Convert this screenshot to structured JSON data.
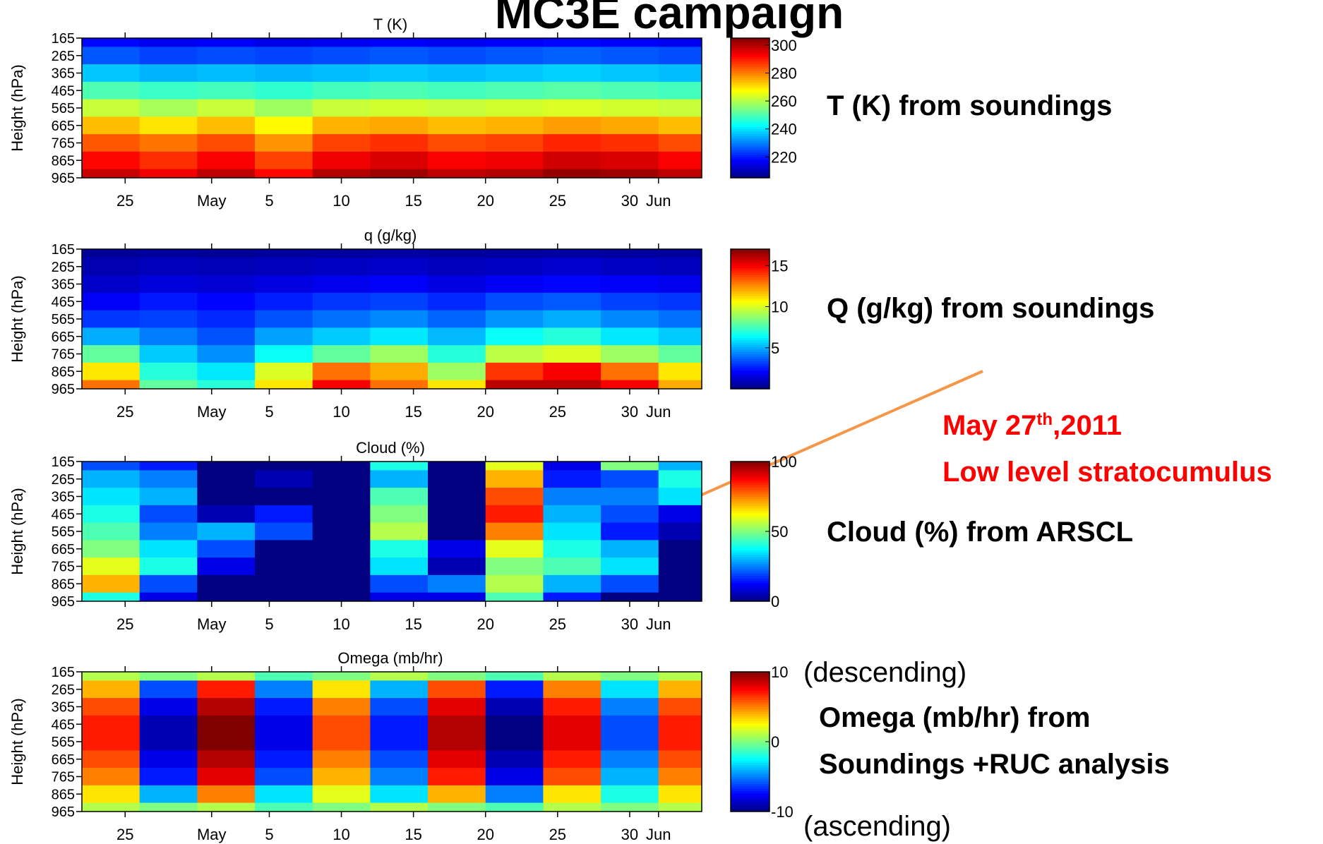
{
  "title": "MC3E campaign",
  "highlight": {
    "date": [
      "May 27",
      "th",
      ",2011"
    ],
    "text": "Low level stratocumulus"
  },
  "chart_data": [
    {
      "type": "heatmap",
      "title": "T (K)",
      "ylabel": "Height (hPa)",
      "annotation": [
        "T (K) from soundings"
      ],
      "colormap": "jet",
      "x": [
        114,
        118,
        122,
        126,
        130,
        134,
        138,
        142,
        146,
        150,
        154
      ],
      "y": [
        165,
        265,
        365,
        465,
        565,
        665,
        765,
        865,
        965
      ],
      "xlim": [
        112,
        155
      ],
      "ylim": [
        965,
        165
      ],
      "xticks": [
        {
          "value": 115,
          "label": "25"
        },
        {
          "value": 121,
          "label": "May"
        },
        {
          "value": 125,
          "label": "5"
        },
        {
          "value": 130,
          "label": "10"
        },
        {
          "value": 135,
          "label": "15"
        },
        {
          "value": 140,
          "label": "20"
        },
        {
          "value": 145,
          "label": "25"
        },
        {
          "value": 150,
          "label": "30"
        },
        {
          "value": 152,
          "label": "Jun"
        }
      ],
      "yticks": [
        165,
        265,
        365,
        465,
        565,
        665,
        765,
        865,
        965
      ],
      "clim": [
        205,
        305
      ],
      "cticks": [
        220,
        240,
        260,
        280,
        300
      ],
      "values": [
        [
          218,
          216,
          217,
          215,
          216,
          217,
          216,
          217,
          218,
          217,
          216
        ],
        [
          226,
          224,
          225,
          224,
          225,
          226,
          225,
          226,
          227,
          226,
          225
        ],
        [
          237,
          235,
          236,
          235,
          236,
          237,
          236,
          237,
          238,
          237,
          236
        ],
        [
          250,
          248,
          249,
          247,
          249,
          250,
          249,
          250,
          251,
          250,
          249
        ],
        [
          262,
          259,
          262,
          258,
          262,
          263,
          262,
          263,
          264,
          263,
          262
        ],
        [
          274,
          270,
          274,
          268,
          275,
          276,
          274,
          275,
          277,
          276,
          274
        ],
        [
          284,
          281,
          285,
          278,
          286,
          288,
          285,
          286,
          289,
          288,
          285
        ],
        [
          292,
          288,
          293,
          286,
          294,
          296,
          293,
          294,
          297,
          296,
          293
        ],
        [
          298,
          294,
          299,
          292,
          300,
          302,
          299,
          300,
          303,
          302,
          299
        ]
      ]
    },
    {
      "type": "heatmap",
      "title": "q (g/kg)",
      "ylabel": "Height (hPa)",
      "annotation": [
        "Q (g/kg) from soundings"
      ],
      "colormap": "jet",
      "x": [
        114,
        118,
        122,
        126,
        130,
        134,
        138,
        142,
        146,
        150,
        154
      ],
      "y": [
        165,
        265,
        365,
        465,
        565,
        665,
        765,
        865,
        965
      ],
      "xlim": [
        112,
        155
      ],
      "ylim": [
        965,
        165
      ],
      "xticks": [
        {
          "value": 115,
          "label": "25"
        },
        {
          "value": 121,
          "label": "May"
        },
        {
          "value": 125,
          "label": "5"
        },
        {
          "value": 130,
          "label": "10"
        },
        {
          "value": 135,
          "label": "15"
        },
        {
          "value": 140,
          "label": "20"
        },
        {
          "value": 145,
          "label": "25"
        },
        {
          "value": 150,
          "label": "30"
        },
        {
          "value": 152,
          "label": "Jun"
        }
      ],
      "yticks": [
        165,
        265,
        365,
        465,
        565,
        665,
        765,
        865,
        965
      ],
      "clim": [
        0,
        17
      ],
      "cticks": [
        5,
        10,
        15
      ],
      "values": [
        [
          0.4,
          0.5,
          0.4,
          0.5,
          0.5,
          0.6,
          0.5,
          0.5,
          0.6,
          0.5,
          0.5
        ],
        [
          0.8,
          1,
          0.9,
          1,
          1.1,
          1.2,
          1,
          1.1,
          1.3,
          1.1,
          1
        ],
        [
          1.2,
          1.5,
          1.4,
          1.6,
          1.8,
          2,
          1.6,
          1.9,
          2.2,
          2,
          1.8
        ],
        [
          2,
          2.5,
          2.2,
          2.6,
          3,
          3.2,
          2.8,
          3.4,
          3.6,
          3.2,
          3
        ],
        [
          3,
          3.2,
          2.8,
          3.5,
          4,
          4.4,
          3.8,
          4.6,
          5,
          4.4,
          4
        ],
        [
          5,
          4.2,
          3.5,
          4.8,
          5.5,
          6,
          5.2,
          6.5,
          7,
          6,
          5.5
        ],
        [
          8,
          5.5,
          4.5,
          6.5,
          8,
          9,
          7,
          9.5,
          10,
          9,
          8
        ],
        [
          11,
          7,
          6,
          10,
          13,
          12,
          9,
          14,
          15,
          13,
          11
        ],
        [
          13,
          8,
          7,
          11,
          15,
          13,
          11,
          16,
          16,
          15,
          12
        ]
      ]
    },
    {
      "type": "heatmap",
      "title": "Cloud (%)",
      "ylabel": "Height (hPa)",
      "annotation": [
        "Cloud (%) from ARSCL"
      ],
      "colormap": "jet",
      "x": [
        114,
        118,
        122,
        126,
        130,
        134,
        138,
        142,
        146,
        150,
        154
      ],
      "y": [
        165,
        265,
        365,
        465,
        565,
        665,
        765,
        865,
        965
      ],
      "xlim": [
        112,
        155
      ],
      "ylim": [
        965,
        165
      ],
      "xticks": [
        {
          "value": 115,
          "label": "25"
        },
        {
          "value": 121,
          "label": "May"
        },
        {
          "value": 125,
          "label": "5"
        },
        {
          "value": 130,
          "label": "10"
        },
        {
          "value": 135,
          "label": "15"
        },
        {
          "value": 140,
          "label": "20"
        },
        {
          "value": 145,
          "label": "25"
        },
        {
          "value": 150,
          "label": "30"
        },
        {
          "value": 152,
          "label": "Jun"
        }
      ],
      "yticks": [
        165,
        265,
        365,
        465,
        565,
        665,
        765,
        865,
        965
      ],
      "clim": [
        0,
        100
      ],
      "cticks": [
        0,
        50,
        100
      ],
      "values": [
        [
          20,
          15,
          0,
          0,
          0,
          40,
          0,
          60,
          10,
          50,
          30
        ],
        [
          30,
          25,
          0,
          5,
          0,
          30,
          0,
          70,
          15,
          20,
          40
        ],
        [
          35,
          30,
          0,
          0,
          0,
          45,
          0,
          80,
          25,
          25,
          35
        ],
        [
          40,
          20,
          5,
          15,
          0,
          50,
          0,
          85,
          30,
          20,
          10
        ],
        [
          45,
          25,
          30,
          20,
          0,
          55,
          0,
          75,
          35,
          15,
          5
        ],
        [
          50,
          35,
          20,
          0,
          0,
          40,
          10,
          60,
          40,
          30,
          0
        ],
        [
          60,
          40,
          10,
          0,
          0,
          35,
          5,
          50,
          45,
          35,
          0
        ],
        [
          70,
          20,
          0,
          0,
          0,
          20,
          25,
          55,
          30,
          20,
          0
        ],
        [
          40,
          10,
          0,
          0,
          0,
          10,
          10,
          45,
          15,
          0,
          0
        ]
      ]
    },
    {
      "type": "heatmap",
      "title": "Omega (mb/hr)",
      "ylabel": "Height (hPa)",
      "annotation": [
        "Omega (mb/hr) from",
        "Soundings +RUC analysis"
      ],
      "colorbar_top_note": "(descending)",
      "colorbar_bottom_note": "(ascending)",
      "colormap": "jet",
      "x": [
        114,
        118,
        122,
        126,
        130,
        134,
        138,
        142,
        146,
        150,
        154
      ],
      "y": [
        165,
        265,
        365,
        465,
        565,
        665,
        765,
        865,
        965
      ],
      "xlim": [
        112,
        155
      ],
      "ylim": [
        965,
        165
      ],
      "xticks": [
        {
          "value": 115,
          "label": "25"
        },
        {
          "value": 121,
          "label": "May"
        },
        {
          "value": 125,
          "label": "5"
        },
        {
          "value": 130,
          "label": "10"
        },
        {
          "value": 135,
          "label": "15"
        },
        {
          "value": 140,
          "label": "20"
        },
        {
          "value": 145,
          "label": "25"
        },
        {
          "value": 150,
          "label": "30"
        },
        {
          "value": 152,
          "label": "Jun"
        }
      ],
      "yticks": [
        165,
        265,
        365,
        465,
        565,
        665,
        765,
        865,
        965
      ],
      "clim": [
        -10,
        10
      ],
      "cticks": [
        -10,
        0,
        10
      ],
      "values": [
        [
          1,
          0,
          1,
          -1,
          0,
          1,
          0,
          -1,
          1,
          0,
          1
        ],
        [
          4,
          -6,
          7,
          -5,
          3,
          -4,
          6,
          -7,
          5,
          -3,
          4
        ],
        [
          6,
          -8,
          9,
          -7,
          5,
          -6,
          8,
          -9,
          7,
          -5,
          6
        ],
        [
          7,
          -9,
          10,
          -8,
          6,
          -7,
          9,
          -10,
          8,
          -6,
          7
        ],
        [
          7,
          -9,
          10,
          -8,
          6,
          -7,
          9,
          -10,
          8,
          -6,
          7
        ],
        [
          6,
          -8,
          9,
          -7,
          5,
          -6,
          8,
          -9,
          7,
          -5,
          6
        ],
        [
          5,
          -7,
          8,
          -6,
          4,
          -5,
          7,
          -8,
          6,
          -4,
          5
        ],
        [
          3,
          -4,
          5,
          -3,
          2,
          -3,
          4,
          -5,
          3,
          -2,
          3
        ],
        [
          1,
          0,
          1,
          -1,
          0,
          1,
          0,
          -1,
          1,
          0,
          1
        ]
      ]
    }
  ]
}
